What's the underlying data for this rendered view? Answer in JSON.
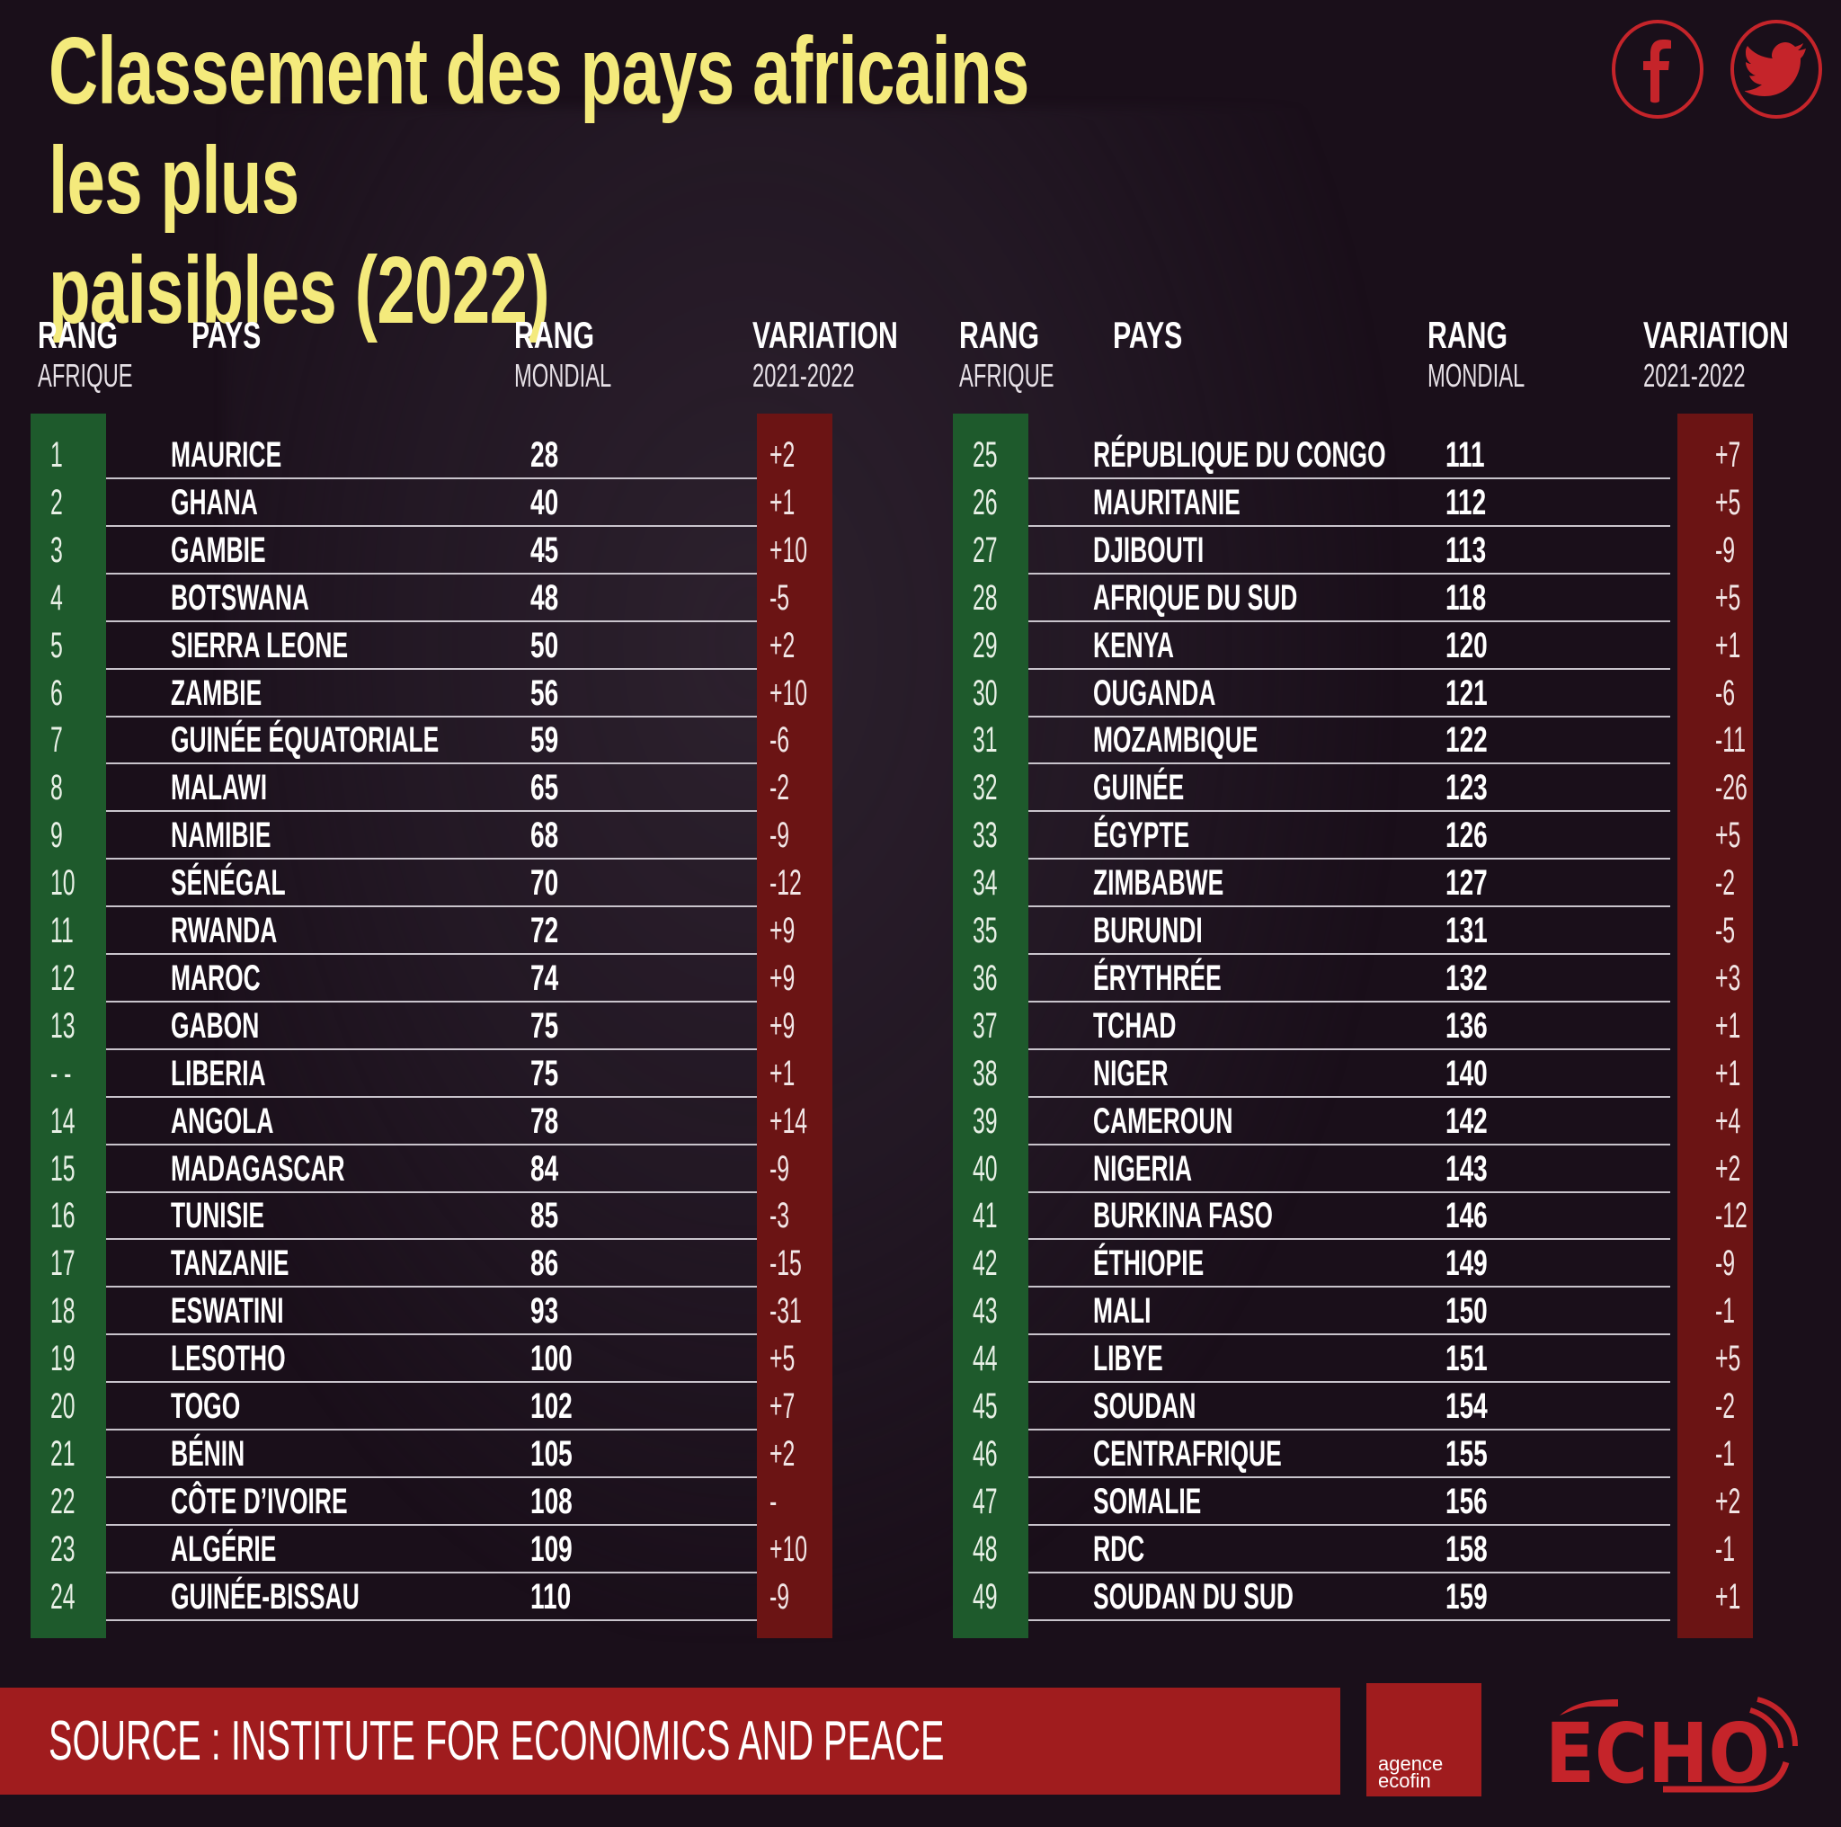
{
  "title": "Classement des pays africains les plus\npaisibles (2022)",
  "social": {
    "facebook_icon": "facebook-icon",
    "twitter_icon": "twitter-icon"
  },
  "headers": {
    "rank_africa_main": "RANG",
    "rank_africa_sub": "AFRIQUE",
    "country": "PAYS",
    "rank_world_main": "RANG",
    "rank_world_sub": "MONDIAL",
    "variation_main": "VARIATION",
    "variation_sub": "2021-2022"
  },
  "colors": {
    "title": "#f4ea7c",
    "rank_bar": "#1e5a2c",
    "variation_bar": "#6b1414",
    "footer_band": "#a01c1e",
    "brand_red": "#c5242a",
    "background": "#1a0f1a"
  },
  "left_table": [
    {
      "rank": "1",
      "country": "MAURICE",
      "world": "28",
      "variation": "+2"
    },
    {
      "rank": "2",
      "country": "GHANA",
      "world": "40",
      "variation": "+1"
    },
    {
      "rank": "3",
      "country": "GAMBIE",
      "world": "45",
      "variation": "+10"
    },
    {
      "rank": "4",
      "country": "BOTSWANA",
      "world": "48",
      "variation": "-5"
    },
    {
      "rank": "5",
      "country": "SIERRA LEONE",
      "world": "50",
      "variation": "+2"
    },
    {
      "rank": "6",
      "country": "ZAMBIE",
      "world": "56",
      "variation": "+10"
    },
    {
      "rank": "7",
      "country": "GUINÉE ÉQUATORIALE",
      "world": "59",
      "variation": "-6"
    },
    {
      "rank": "8",
      "country": "MALAWI",
      "world": "65",
      "variation": "-2"
    },
    {
      "rank": "9",
      "country": "NAMIBIE",
      "world": "68",
      "variation": "-9"
    },
    {
      "rank": "10",
      "country": "SÉNÉGAL",
      "world": "70",
      "variation": "-12"
    },
    {
      "rank": "11",
      "country": "RWANDA",
      "world": "72",
      "variation": "+9"
    },
    {
      "rank": "12",
      "country": "MAROC",
      "world": "74",
      "variation": "+9"
    },
    {
      "rank": "13",
      "country": "GABON",
      "world": "75",
      "variation": "+9"
    },
    {
      "rank": "- -",
      "country": "LIBERIA",
      "world": "75",
      "variation": "+1"
    },
    {
      "rank": "14",
      "country": "ANGOLA",
      "world": "78",
      "variation": "+14"
    },
    {
      "rank": "15",
      "country": "MADAGASCAR",
      "world": "84",
      "variation": "-9"
    },
    {
      "rank": "16",
      "country": "TUNISIE",
      "world": "85",
      "variation": "-3"
    },
    {
      "rank": "17",
      "country": "TANZANIE",
      "world": "86",
      "variation": "-15"
    },
    {
      "rank": "18",
      "country": "ESWATINI",
      "world": "93",
      "variation": "-31"
    },
    {
      "rank": "19",
      "country": "LESOTHO",
      "world": "100",
      "variation": "+5"
    },
    {
      "rank": "20",
      "country": "TOGO",
      "world": "102",
      "variation": "+7"
    },
    {
      "rank": "21",
      "country": "BÉNIN",
      "world": "105",
      "variation": "+2"
    },
    {
      "rank": "22",
      "country": "CÔTE D’IVOIRE",
      "world": "108",
      "variation": "-"
    },
    {
      "rank": "23",
      "country": "ALGÉRIE",
      "world": "109",
      "variation": "+10"
    },
    {
      "rank": "24",
      "country": "GUINÉE-BISSAU",
      "world": "110",
      "variation": "-9"
    }
  ],
  "right_table": [
    {
      "rank": "25",
      "country": "RÉPUBLIQUE DU CONGO",
      "world": "111",
      "variation": "+7"
    },
    {
      "rank": "26",
      "country": "MAURITANIE",
      "world": "112",
      "variation": "+5"
    },
    {
      "rank": "27",
      "country": "DJIBOUTI",
      "world": "113",
      "variation": "-9"
    },
    {
      "rank": "28",
      "country": "AFRIQUE DU SUD",
      "world": "118",
      "variation": "+5"
    },
    {
      "rank": "29",
      "country": "KENYA",
      "world": "120",
      "variation": "+1"
    },
    {
      "rank": "30",
      "country": "OUGANDA",
      "world": "121",
      "variation": "-6"
    },
    {
      "rank": "31",
      "country": "MOZAMBIQUE",
      "world": "122",
      "variation": "-11"
    },
    {
      "rank": "32",
      "country": "GUINÉE",
      "world": "123",
      "variation": "-26"
    },
    {
      "rank": "33",
      "country": "ÉGYPTE",
      "world": "126",
      "variation": "+5"
    },
    {
      "rank": "34",
      "country": "ZIMBABWE",
      "world": "127",
      "variation": "-2"
    },
    {
      "rank": "35",
      "country": "BURUNDI",
      "world": "131",
      "variation": "-5"
    },
    {
      "rank": "36",
      "country": "ÉRYTHRÉE",
      "world": "132",
      "variation": "+3"
    },
    {
      "rank": "37",
      "country": "TCHAD",
      "world": "136",
      "variation": "+1"
    },
    {
      "rank": "38",
      "country": "NIGER",
      "world": "140",
      "variation": "+1"
    },
    {
      "rank": "39",
      "country": "CAMEROUN",
      "world": "142",
      "variation": "+4"
    },
    {
      "rank": "40",
      "country": "NIGERIA",
      "world": "143",
      "variation": "+2"
    },
    {
      "rank": "41",
      "country": "BURKINA FASO",
      "world": "146",
      "variation": "-12"
    },
    {
      "rank": "42",
      "country": "ÉTHIOPIE",
      "world": "149",
      "variation": "-9"
    },
    {
      "rank": "43",
      "country": "MALI",
      "world": "150",
      "variation": "-1"
    },
    {
      "rank": "44",
      "country": "LIBYE",
      "world": "151",
      "variation": "+5"
    },
    {
      "rank": "45",
      "country": "SOUDAN",
      "world": "154",
      "variation": "-2"
    },
    {
      "rank": "46",
      "country": "CENTRAFRIQUE",
      "world": "155",
      "variation": "-1"
    },
    {
      "rank": "47",
      "country": "SOMALIE",
      "world": "156",
      "variation": "+2"
    },
    {
      "rank": "48",
      "country": "RDC",
      "world": "158",
      "variation": "-1"
    },
    {
      "rank": "49",
      "country": "SOUDAN DU SUD",
      "world": "159",
      "variation": "+1"
    }
  ],
  "footer": {
    "source": "SOURCE : INSTITUTE FOR ECONOMICS AND PEACE",
    "agence_line1": "agence",
    "agence_line2": "ecofin",
    "echo_logo": "ECHO"
  }
}
